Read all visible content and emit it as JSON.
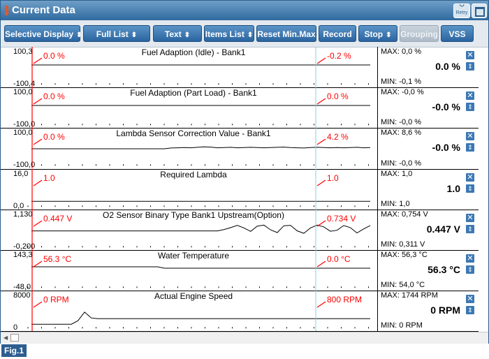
{
  "window": {
    "title": "Current Data",
    "retry_label": "Retry"
  },
  "toolbar": {
    "selective_display": "Selective Display",
    "full_list": "Full List",
    "text": "Text",
    "items_list": "Items List",
    "reset_min_max": "Reset Min.Max",
    "record": "Record",
    "stop": "Stop",
    "grouping": "Grouping",
    "vss": "VSS"
  },
  "colors": {
    "accent": "#2b65a0",
    "cursor_red": "#ff0000",
    "cursor_cyan": "#7fd0e8"
  },
  "icons": {
    "remove": "close-icon",
    "reorder": "up-down-arrow-icon",
    "maximize": "maximize-icon",
    "retry": "refresh-icon"
  },
  "channels": [
    {
      "name": "Fuel Adaption (Idle) - Bank1",
      "ymax": "100,3",
      "ymin": "-100,4",
      "cursor1": "0.0 %",
      "cursor2": "-0.2 %",
      "max": "MAX:   0,0 %",
      "min": "MIN:  -0,1 %",
      "current": "0.0 %",
      "trace": [
        0,
        0,
        0,
        0,
        0,
        0,
        0,
        0,
        0,
        0,
        0,
        0,
        0,
        0,
        0,
        0,
        0,
        0,
        0,
        0,
        0,
        0,
        0,
        0,
        0,
        0,
        0,
        0,
        0,
        0,
        0,
        0,
        0,
        0,
        0,
        0,
        0,
        0,
        0,
        0,
        0,
        0,
        0,
        0,
        0,
        0,
        0,
        0,
        0,
        0,
        0,
        0
      ]
    },
    {
      "name": "Fuel Adaption (Part Load) - Bank1",
      "ymax": "100,0",
      "ymin": "-100,0",
      "cursor1": "0.0 %",
      "cursor2": "0.0 %",
      "max": "MAX:  -0,0 %",
      "min": "MIN:  -0,0 %",
      "current": "-0.0 %",
      "trace": [
        0,
        0,
        0,
        0,
        0,
        0,
        0,
        0,
        0,
        0,
        0,
        0,
        0,
        0,
        0,
        0,
        0,
        0,
        0,
        0,
        0,
        0,
        0,
        0,
        0,
        0,
        0,
        0,
        0,
        0,
        0,
        0,
        0,
        0,
        0,
        0,
        0,
        0,
        0,
        0,
        0,
        0,
        0,
        0,
        0,
        0,
        0,
        0,
        0,
        0,
        0,
        0
      ]
    },
    {
      "name": "Lambda Sensor Correction Value - Bank1",
      "ymax": "100,0",
      "ymin": "-100,0",
      "cursor1": "0.0 %",
      "cursor2": "4.2 %",
      "max": "MAX:   8,6 %",
      "min": "MIN:  -0,0 %",
      "current": "-0.0 %",
      "trace": [
        0,
        0,
        0,
        0,
        0,
        0,
        0,
        0,
        0,
        0,
        0,
        0,
        0,
        0,
        0,
        0,
        0,
        0,
        0,
        0,
        0,
        3,
        4,
        5,
        4,
        6,
        8,
        7,
        4,
        5,
        6,
        4,
        5,
        6,
        5,
        4,
        5,
        6,
        7,
        5,
        4,
        3,
        5,
        6,
        5,
        4,
        5,
        4,
        5,
        6,
        4,
        5
      ]
    },
    {
      "name": "Required Lambda",
      "ymax": "16,0",
      "ymin": "0,0",
      "cursor1": "1.0",
      "cursor2": "1.0",
      "max": "MAX:   1,0",
      "min": "MIN:   1,0",
      "current": "1.0",
      "trace": [
        1,
        1,
        1,
        1,
        1,
        1,
        1,
        1,
        1,
        1,
        1,
        1,
        1,
        1,
        1,
        1,
        1,
        1,
        1,
        1,
        1,
        1,
        1,
        1,
        1,
        1,
        1,
        1,
        1,
        1,
        1,
        1,
        1,
        1,
        1,
        1,
        1,
        1,
        1,
        1,
        1,
        1,
        1,
        1,
        1,
        1,
        1,
        1,
        1,
        1,
        1,
        1
      ]
    },
    {
      "name": "O2 Sensor Binary Type Bank1 Upstream(Option)",
      "ymax": "1,130",
      "ymin": "-0,200",
      "cursor1": "0.447 V",
      "cursor2": "0.734 V",
      "max": "MAX: 0,754 V",
      "min": "MIN: 0,311 V",
      "current": "0.447 V",
      "trace": [
        0.447,
        0.447,
        0.447,
        0.447,
        0.447,
        0.447,
        0.447,
        0.447,
        0.447,
        0.447,
        0.447,
        0.447,
        0.447,
        0.447,
        0.447,
        0.447,
        0.447,
        0.447,
        0.447,
        0.447,
        0.447,
        0.447,
        0.447,
        0.447,
        0.447,
        0.447,
        0.447,
        0.447,
        0.447,
        0.52,
        0.62,
        0.74,
        0.6,
        0.42,
        0.7,
        0.75,
        0.5,
        0.36,
        0.72,
        0.74,
        0.45,
        0.32,
        0.6,
        0.75,
        0.66,
        0.43,
        0.48,
        0.73,
        0.62,
        0.34,
        0.55,
        0.73
      ]
    },
    {
      "name": "Water Temperature",
      "ymax": "143,3",
      "ymin": "-48,0",
      "cursor1": "56.3 °C",
      "cursor2": "0.0 °C",
      "max": "MAX:  56,3 °C",
      "min": "MIN:  54,0 °C",
      "current": "56.3 °C",
      "trace": [
        56,
        56,
        56,
        56,
        56,
        56,
        56,
        56,
        56,
        56,
        56,
        56,
        56,
        56,
        56,
        56,
        56,
        56,
        56,
        56,
        54.8,
        54.8,
        54.8,
        54.8,
        54.8,
        54.8,
        54.8,
        54.8,
        54.8,
        54.8,
        54.8,
        54.8,
        54.8,
        54.8,
        54.8,
        54.8,
        54.8,
        54.8,
        54.8,
        54.8,
        54.8,
        54.8,
        54.8,
        54.8,
        54.8,
        54.8,
        54.8,
        54.8,
        54.8,
        54.8,
        54.8,
        54.8
      ]
    },
    {
      "name": "Actual Engine Speed",
      "ymax": "8000",
      "ymin": "0",
      "cursor1": "0 RPM",
      "cursor2": "800 RPM",
      "max": "MAX:  1744 RPM",
      "min": "MIN:     0 RPM",
      "current": "0 RPM",
      "trace": [
        0,
        0,
        0,
        0,
        0,
        0,
        0,
        500,
        1744,
        900,
        800,
        800,
        800,
        800,
        800,
        800,
        800,
        800,
        800,
        800,
        800,
        800,
        800,
        800,
        800,
        800,
        800,
        800,
        800,
        800,
        800,
        800,
        800,
        800,
        800,
        800,
        800,
        800,
        800,
        800,
        800,
        800,
        800,
        800,
        800,
        800,
        800,
        800,
        800,
        800,
        800,
        800
      ]
    }
  ],
  "footer": {
    "figure_label": "Fig.1"
  }
}
